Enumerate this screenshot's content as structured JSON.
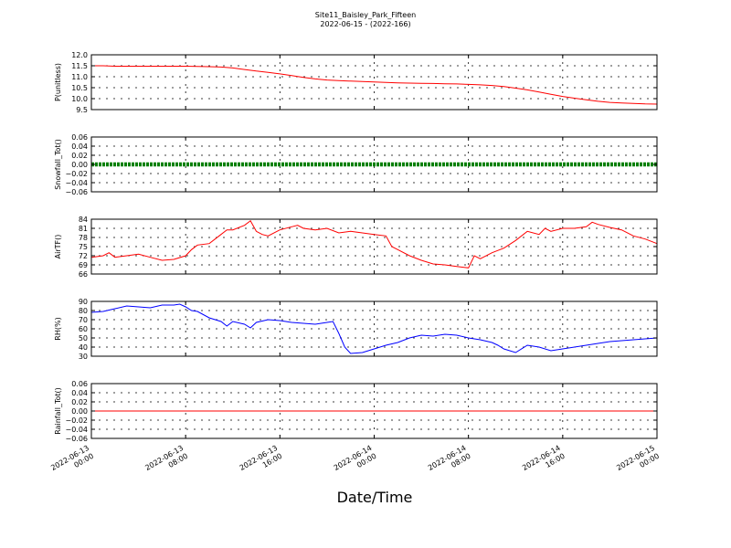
{
  "figure": {
    "title_line1": "Site11_Baisley_Park_Fifteen",
    "title_line2": "2022-06-15 - (2022-166)",
    "xlabel": "Date/Time"
  },
  "chart_data": [
    {
      "type": "line",
      "ylabel": "P(unitless)",
      "ylim": [
        9.5,
        12.0
      ],
      "yticks": [
        "12.0",
        "11.5",
        "11.0",
        "10.5",
        "10.0",
        "9.5"
      ],
      "ytick_values": [
        12.0,
        11.5,
        11.0,
        10.5,
        10.0,
        9.5
      ],
      "grid": true,
      "series": [
        {
          "color": "#ff0000",
          "x_hours": [
            0,
            1,
            2,
            3,
            4,
            5,
            6,
            7,
            8,
            9,
            10,
            11,
            12,
            13,
            14,
            15,
            16,
            17,
            18,
            19,
            20,
            21,
            22,
            23,
            24,
            25,
            26,
            27,
            28,
            29,
            30,
            31,
            32,
            33,
            34,
            35,
            36,
            37,
            38,
            39,
            40,
            41,
            42,
            43,
            44,
            45,
            46,
            47,
            48
          ],
          "values": [
            11.5,
            11.5,
            11.48,
            11.48,
            11.48,
            11.48,
            11.48,
            11.48,
            11.48,
            11.47,
            11.46,
            11.44,
            11.4,
            11.33,
            11.26,
            11.2,
            11.13,
            11.05,
            10.97,
            10.9,
            10.85,
            10.82,
            10.8,
            10.78,
            10.76,
            10.74,
            10.72,
            10.71,
            10.7,
            10.69,
            10.68,
            10.67,
            10.65,
            10.63,
            10.6,
            10.55,
            10.48,
            10.4,
            10.3,
            10.2,
            10.1,
            10.02,
            9.95,
            9.88,
            9.83,
            9.8,
            9.78,
            9.76,
            9.75
          ]
        }
      ]
    },
    {
      "type": "line",
      "ylabel": "Snowfall_Tot()",
      "ylim": [
        -0.06,
        0.06
      ],
      "yticks": [
        "0.06",
        "0.04",
        "0.02",
        "0.00",
        "−0.02",
        "−0.04",
        "−0.06"
      ],
      "ytick_values": [
        0.06,
        0.04,
        0.02,
        0.0,
        -0.02,
        -0.04,
        -0.06
      ],
      "grid": true,
      "series": [
        {
          "color": "#008000",
          "marker": "point",
          "x_hours": [
            0,
            48
          ],
          "values": [
            0.0,
            0.0
          ]
        }
      ]
    },
    {
      "type": "line",
      "ylabel": "AirTF()",
      "ylim": [
        66,
        84
      ],
      "yticks": [
        "84",
        "81",
        "78",
        "75",
        "72",
        "69",
        "66"
      ],
      "ytick_values": [
        84,
        81,
        78,
        75,
        72,
        69,
        66
      ],
      "grid": true,
      "series": [
        {
          "color": "#ff0000",
          "x_hours": [
            0,
            1,
            1.5,
            2,
            3,
            4,
            5,
            6,
            7,
            8,
            8.5,
            9,
            10,
            11,
            11.5,
            12,
            13,
            13.5,
            14,
            14.5,
            15,
            16,
            17,
            17.5,
            18,
            19,
            20,
            21,
            22,
            23,
            24,
            25,
            25.5,
            26,
            27,
            28,
            29,
            30,
            31,
            32,
            32.5,
            33,
            34,
            35,
            36,
            37,
            38,
            38.5,
            39,
            40,
            41,
            42,
            42.5,
            43,
            44,
            45,
            46,
            47,
            48
          ],
          "values": [
            71.5,
            72,
            73,
            71.5,
            72,
            72.5,
            71.5,
            70.5,
            70.8,
            72,
            74,
            75.5,
            76,
            79,
            80.5,
            80.5,
            82,
            83.5,
            80,
            79,
            78.5,
            80.5,
            81.5,
            82,
            81,
            80.5,
            81,
            79.5,
            80,
            79.5,
            79,
            78.5,
            75,
            74,
            72,
            70.5,
            69.3,
            69,
            68.5,
            68,
            72,
            71,
            73,
            74.5,
            77,
            80,
            79,
            81,
            80,
            81,
            81,
            81.5,
            83,
            82.3,
            81.3,
            80.5,
            78.5,
            77.5,
            76
          ]
        }
      ]
    },
    {
      "type": "line",
      "ylabel": "RH(%)",
      "ylim": [
        30,
        90
      ],
      "yticks": [
        "90",
        "80",
        "70",
        "60",
        "50",
        "40",
        "30"
      ],
      "ytick_values": [
        90,
        80,
        70,
        60,
        50,
        40,
        30
      ],
      "grid": true,
      "series": [
        {
          "color": "#0000ff",
          "x_hours": [
            0,
            1,
            2,
            3,
            4,
            5,
            6,
            7,
            7.5,
            8,
            8.5,
            9,
            10,
            11,
            11.5,
            12,
            13,
            13.5,
            14,
            15,
            16,
            17,
            18,
            19,
            20,
            20.5,
            21,
            21.5,
            22,
            23,
            24,
            25,
            26,
            27,
            28,
            29,
            30,
            31,
            32,
            33,
            34,
            34.5,
            35,
            36,
            37,
            38,
            39,
            40,
            41,
            42,
            43,
            44,
            45,
            46,
            47,
            48
          ],
          "values": [
            78,
            79,
            82,
            85,
            84,
            83,
            86,
            86,
            87,
            84,
            80,
            79,
            72,
            68,
            63,
            68,
            65,
            61,
            67,
            70,
            69,
            67,
            66,
            65,
            67,
            68,
            55,
            40,
            33,
            34,
            38,
            42,
            45,
            50,
            53,
            52,
            54,
            53,
            50,
            48,
            45,
            42,
            38,
            34,
            42,
            40,
            36,
            38,
            40,
            42,
            44,
            46,
            47,
            48,
            49,
            50
          ]
        }
      ]
    },
    {
      "type": "line",
      "ylabel": "Rainfall_Tot()",
      "ylim": [
        -0.06,
        0.06
      ],
      "yticks": [
        "0.06",
        "0.04",
        "0.02",
        "0.00",
        "−0.02",
        "−0.04",
        "−0.06"
      ],
      "ytick_values": [
        0.06,
        0.04,
        0.02,
        0.0,
        -0.02,
        -0.04,
        -0.06
      ],
      "grid": true,
      "series": [
        {
          "color": "#ff0000",
          "x_hours": [
            0,
            48
          ],
          "values": [
            0.0,
            0.0
          ]
        }
      ]
    }
  ],
  "x_axis": {
    "range_hours": [
      0,
      48
    ],
    "tick_hours": [
      0,
      8,
      16,
      24,
      32,
      40,
      48
    ],
    "tick_labels": [
      [
        "2022-06-13",
        "00:00"
      ],
      [
        "2022-06-13",
        "08:00"
      ],
      [
        "2022-06-13",
        "16:00"
      ],
      [
        "2022-06-14",
        "00:00"
      ],
      [
        "2022-06-14",
        "08:00"
      ],
      [
        "2022-06-14",
        "16:00"
      ],
      [
        "2022-06-15",
        "00:00"
      ]
    ]
  }
}
